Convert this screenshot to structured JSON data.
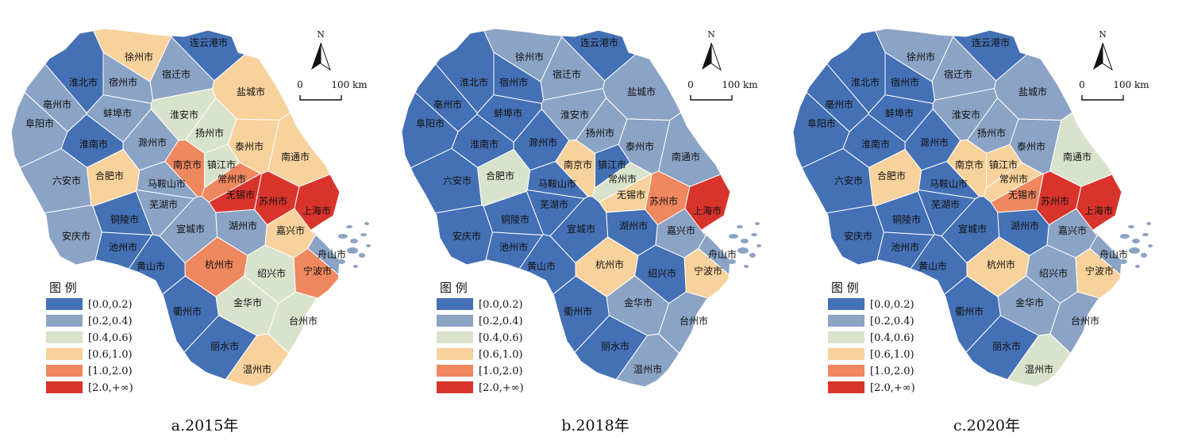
{
  "legend": {
    "title": "图 例",
    "classes": [
      {
        "label": "[0.0,0.2)",
        "color": "#4470b5"
      },
      {
        "label": "[0.2,0.4)",
        "color": "#8ba3c5"
      },
      {
        "label": "[0.4,0.6)",
        "color": "#d9e3cb"
      },
      {
        "label": "[0.6,1.0)",
        "color": "#f8d29c"
      },
      {
        "label": "[1.0,2.0)",
        "color": "#ef875f"
      },
      {
        "label": "[2.0,+∞)",
        "color": "#d9342c"
      }
    ]
  },
  "north_label": "N",
  "scale": {
    "start": "0",
    "end": "100 km"
  },
  "cities": [
    "连云港市",
    "徐州市",
    "宿迁市",
    "淮北市",
    "宿州市",
    "亳州市",
    "蚌埠市",
    "淮安市",
    "盐城市",
    "阜阳市",
    "淮南市",
    "滁州市",
    "扬州市",
    "泰州市",
    "南通市",
    "合肥市",
    "南京市",
    "镇江市",
    "常州市",
    "无锡市",
    "苏州市",
    "上海市",
    "六安市",
    "马鞍山市",
    "芜湖市",
    "铜陵市",
    "宣城市",
    "湖州市",
    "嘉兴市",
    "安庆市",
    "池州市",
    "黄山市",
    "杭州市",
    "绍兴市",
    "宁波市",
    "舟山市",
    "衢州市",
    "金华市",
    "台州市",
    "丽水市",
    "温州市"
  ],
  "panels": [
    {
      "caption": "a.2015年",
      "classes": [
        0,
        3,
        1,
        0,
        1,
        1,
        1,
        2,
        3,
        1,
        0,
        1,
        2,
        3,
        3,
        3,
        4,
        2,
        4,
        5,
        5,
        5,
        1,
        1,
        1,
        0,
        1,
        1,
        3,
        1,
        0,
        0,
        4,
        2,
        4,
        1,
        0,
        2,
        2,
        0,
        3
      ]
    },
    {
      "caption": "b.2018年",
      "classes": [
        0,
        1,
        1,
        0,
        0,
        0,
        0,
        1,
        1,
        0,
        0,
        0,
        1,
        1,
        1,
        2,
        3,
        0,
        2,
        3,
        4,
        5,
        0,
        0,
        0,
        0,
        0,
        0,
        1,
        0,
        0,
        0,
        3,
        0,
        3,
        1,
        0,
        1,
        1,
        0,
        1
      ]
    },
    {
      "caption": "c.2020年",
      "classes": [
        0,
        1,
        1,
        0,
        0,
        0,
        0,
        1,
        1,
        0,
        0,
        0,
        1,
        1,
        2,
        3,
        3,
        3,
        3,
        4,
        5,
        5,
        0,
        0,
        0,
        0,
        0,
        0,
        1,
        0,
        0,
        0,
        3,
        1,
        3,
        1,
        0,
        1,
        1,
        0,
        2
      ]
    }
  ]
}
